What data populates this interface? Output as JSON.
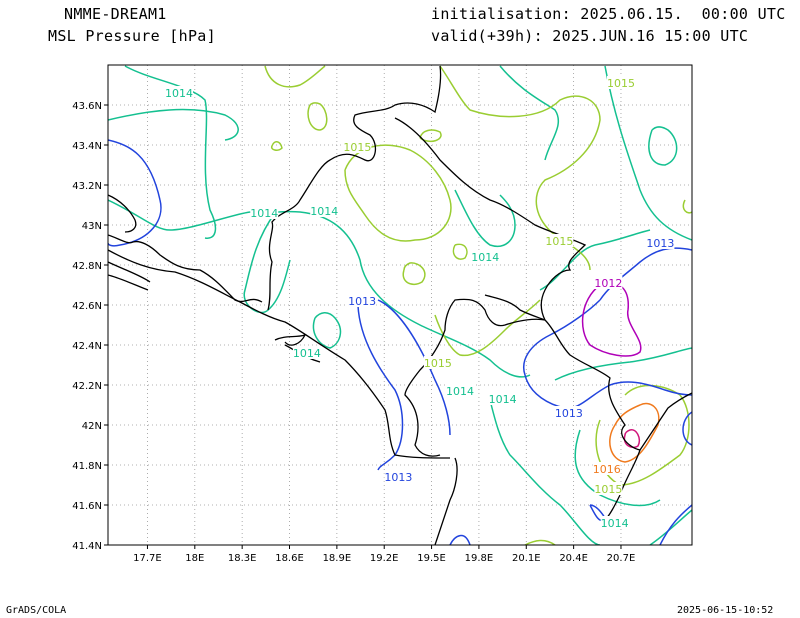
{
  "header": {
    "model": "NMME-DREAM1",
    "field": "MSL Pressure [hPa]",
    "init": "initialisation: 2025.06.15.  00:00 UTC",
    "valid": "valid(+39h): 2025.JUN.16 15:00 UTC"
  },
  "footer": {
    "left": "GrADS/COLA",
    "right": "2025-06-15-10:52"
  },
  "colors": {
    "1012": "#b000b8",
    "1013": "#2244dd",
    "1014": "#14c090",
    "1015": "#9acd32",
    "1016": "#f07a1e",
    "1017": "#d0157a",
    "coast": "#000000",
    "grid": "#999999"
  },
  "map": {
    "lon_range": [
      17.45,
      21.15
    ],
    "lat_range": [
      41.4,
      43.8
    ],
    "lon_ticks": [
      "17.7E",
      "18E",
      "18.3E",
      "18.6E",
      "18.9E",
      "19.2E",
      "19.5E",
      "19.8E",
      "20.1E",
      "20.4E",
      "20.7E"
    ],
    "lat_ticks": [
      "41.4N",
      "41.6N",
      "41.8N",
      "42N",
      "42.2N",
      "42.4N",
      "42.6N",
      "42.8N",
      "43N",
      "43.2N",
      "43.4N",
      "43.6N"
    ],
    "contour_labels": [
      {
        "text": "1014",
        "lon": 17.9,
        "lat": 43.66,
        "level": "1014"
      },
      {
        "text": "1015",
        "lon": 20.7,
        "lat": 43.71,
        "level": "1015"
      },
      {
        "text": "1015",
        "lon": 19.03,
        "lat": 43.39,
        "level": "1015"
      },
      {
        "text": "1014",
        "lon": 18.44,
        "lat": 43.06,
        "level": "1014"
      },
      {
        "text": "1014",
        "lon": 18.82,
        "lat": 43.07,
        "level": "1014"
      },
      {
        "text": "1015",
        "lon": 20.31,
        "lat": 42.92,
        "level": "1015"
      },
      {
        "text": "1013",
        "lon": 20.95,
        "lat": 42.91,
        "level": "1013"
      },
      {
        "text": "1014",
        "lon": 19.84,
        "lat": 42.84,
        "level": "1014"
      },
      {
        "text": "1012",
        "lon": 20.62,
        "lat": 42.71,
        "level": "1012"
      },
      {
        "text": "1013",
        "lon": 19.06,
        "lat": 42.62,
        "level": "1013"
      },
      {
        "text": "1014",
        "lon": 18.71,
        "lat": 42.36,
        "level": "1014"
      },
      {
        "text": "1015",
        "lon": 19.54,
        "lat": 42.31,
        "level": "1015"
      },
      {
        "text": "1014",
        "lon": 19.68,
        "lat": 42.17,
        "level": "1014"
      },
      {
        "text": "1014",
        "lon": 19.95,
        "lat": 42.13,
        "level": "1014"
      },
      {
        "text": "1013",
        "lon": 20.37,
        "lat": 42.06,
        "level": "1013"
      },
      {
        "text": "1013",
        "lon": 19.29,
        "lat": 41.74,
        "level": "1013"
      },
      {
        "text": "1016",
        "lon": 20.61,
        "lat": 41.78,
        "level": "1016"
      },
      {
        "text": "1015",
        "lon": 20.62,
        "lat": 41.68,
        "level": "1015"
      },
      {
        "text": "1014",
        "lon": 20.66,
        "lat": 41.51,
        "level": "1014"
      }
    ]
  }
}
